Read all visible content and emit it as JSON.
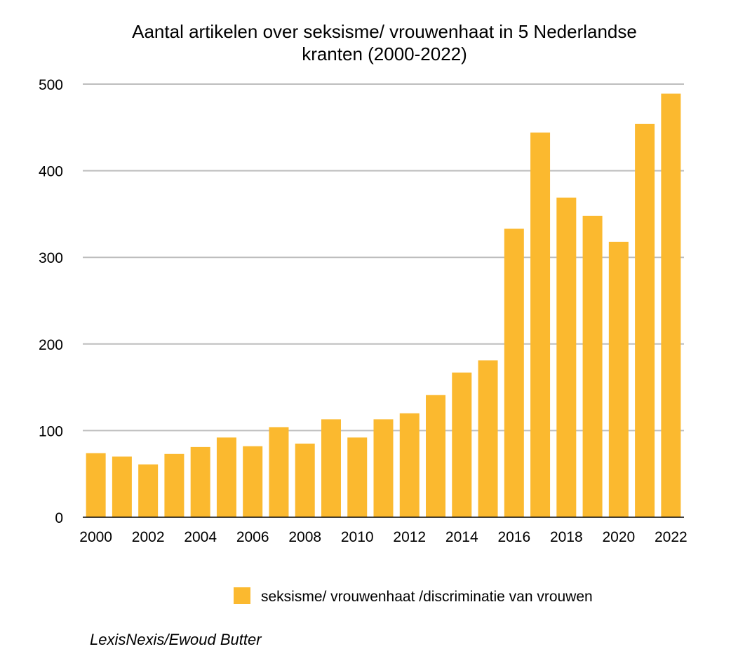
{
  "chart_data": {
    "type": "bar",
    "title": [
      "Aantal artikelen over seksisme/ vrouwenhaat in 5 Nederlandse",
      "kranten (2000-2022)"
    ],
    "xlabel": "",
    "ylabel": "",
    "ylim": [
      0,
      500
    ],
    "yticks": [
      0,
      100,
      200,
      300,
      400,
      500
    ],
    "grid": true,
    "categories": [
      "2000",
      "2001",
      "2002",
      "2003",
      "2004",
      "2005",
      "2006",
      "2007",
      "2008",
      "2009",
      "2010",
      "2011",
      "2012",
      "2013",
      "2014",
      "2015",
      "2016",
      "2017",
      "2018",
      "2019",
      "2020",
      "2021",
      "2022"
    ],
    "xtick_labels": [
      "2000",
      "2002",
      "2004",
      "2006",
      "2008",
      "2010",
      "2012",
      "2014",
      "2016",
      "2018",
      "2020",
      "2022"
    ],
    "series": [
      {
        "name": "seksisme/ vrouwenhaat /discriminatie van vrouwen",
        "color": "#FBB92F",
        "values": [
          74,
          70,
          61,
          73,
          81,
          92,
          82,
          104,
          85,
          113,
          92,
          113,
          120,
          141,
          167,
          181,
          333,
          444,
          369,
          348,
          318,
          454,
          489
        ]
      }
    ],
    "legend_position": "bottom",
    "source": "LexisNexis/Ewoud Butter"
  }
}
